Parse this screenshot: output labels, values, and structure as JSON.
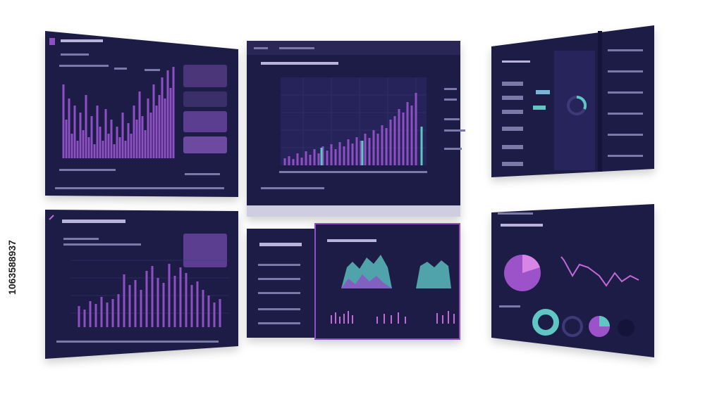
{
  "watermark": {
    "id": "1063588937"
  }
}
